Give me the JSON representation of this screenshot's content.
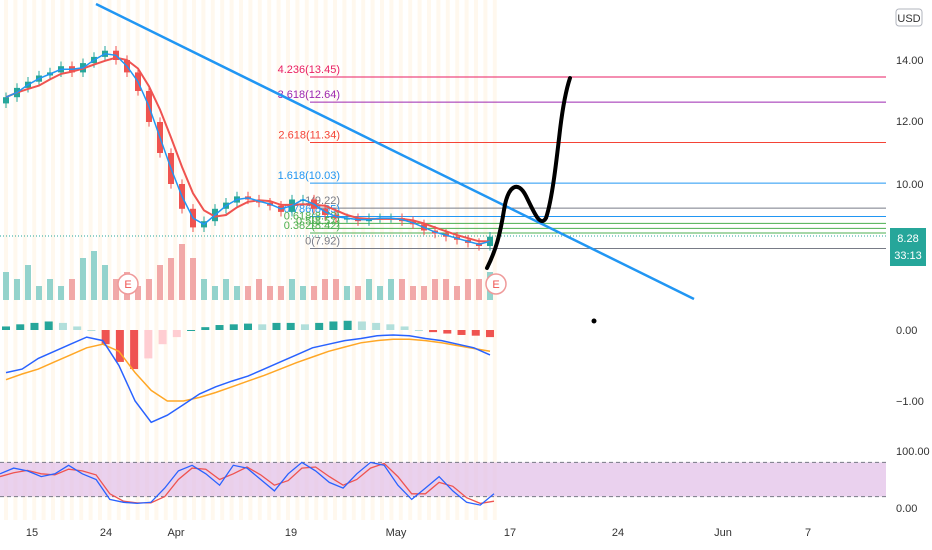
{
  "currency_label": "USD",
  "price_axis": {
    "ticks": [
      {
        "label": "14.00",
        "value": 14.0
      },
      {
        "label": "12.00",
        "value": 12.0
      },
      {
        "label": "10.00",
        "value": 10.0
      }
    ]
  },
  "macd_axis": {
    "ticks": [
      {
        "label": "0.00",
        "value": 0.0
      },
      {
        "label": "−1.00",
        "value": -1.0
      }
    ]
  },
  "stoch_axis": {
    "ticks": [
      {
        "label": "100.00",
        "value": 100
      },
      {
        "label": "0.00",
        "value": 0
      }
    ]
  },
  "date_axis": {
    "ticks": [
      "15",
      "24",
      "Apr",
      "19",
      "May",
      "17",
      "24",
      "Jun",
      "7"
    ]
  },
  "price_badge": {
    "price": "8.28",
    "countdown": "33:13"
  },
  "earnings_marker": "E",
  "colors": {
    "up": "#26a69a",
    "down": "#ef5350",
    "trendline": "#2196f3",
    "stoch_band": "#e1bee7",
    "price_badge": "#26a69a"
  },
  "chart_data": {
    "type": "candlestick",
    "price_unit": "USD",
    "fib_levels": [
      {
        "label": "4.236(13.45)",
        "ratio": 4.236,
        "price": 13.45,
        "color": "#e91e63"
      },
      {
        "label": "3.618(12.64)",
        "ratio": 3.618,
        "price": 12.64,
        "color": "#9c27b0"
      },
      {
        "label": "2.618(11.34)",
        "ratio": 2.618,
        "price": 11.34,
        "color": "#f44336"
      },
      {
        "label": "1.618(10.03)",
        "ratio": 1.618,
        "price": 10.03,
        "color": "#2196f3"
      },
      {
        "label": "1(9.22)",
        "ratio": 1,
        "price": 9.22,
        "color": "#787b86"
      },
      {
        "label": "0.786(8.95)",
        "ratio": 0.786,
        "price": 8.95,
        "color": "#2196f3"
      },
      {
        "label": "0.618(8.73)",
        "ratio": 0.618,
        "price": 8.73,
        "color": "#4caf50"
      },
      {
        "label": "0.5(8.57)",
        "ratio": 0.5,
        "price": 8.57,
        "color": "#4caf50"
      },
      {
        "label": "0.382(8.42)",
        "ratio": 0.382,
        "price": 8.42,
        "color": "#4caf50"
      },
      {
        "label": "0(7.92)",
        "ratio": 0,
        "price": 7.92,
        "color": "#787b86"
      }
    ],
    "close_series": [
      12.8,
      13.1,
      13.3,
      13.5,
      13.6,
      13.8,
      13.6,
      13.9,
      14.1,
      14.3,
      14.0,
      13.6,
      13.0,
      12.0,
      11.0,
      10.0,
      9.2,
      8.6,
      8.8,
      9.2,
      9.4,
      9.6,
      9.5,
      9.4,
      9.3,
      9.1,
      9.5,
      9.5,
      9.2,
      9.0,
      8.9,
      8.9,
      8.8,
      8.9,
      8.9,
      8.9,
      8.8,
      8.7,
      8.5,
      8.4,
      8.3,
      8.2,
      8.1,
      8.0,
      8.3
    ],
    "volume": [
      4,
      3,
      5,
      2,
      3,
      2,
      3,
      6,
      7,
      5,
      3,
      4,
      2,
      3,
      5,
      6,
      8,
      6,
      3,
      2,
      3,
      2,
      2,
      3,
      2,
      2,
      3,
      2,
      2,
      3,
      3,
      2,
      2,
      3,
      2,
      3,
      3,
      2,
      2,
      3,
      3,
      2,
      3,
      3,
      4
    ],
    "macd_histogram": [
      0.05,
      0.08,
      0.1,
      0.12,
      0.1,
      0.05,
      0.0,
      -0.2,
      -0.45,
      -0.55,
      -0.4,
      -0.2,
      -0.1,
      0.0,
      0.04,
      0.07,
      0.08,
      0.09,
      0.08,
      0.1,
      0.1,
      0.08,
      0.1,
      0.12,
      0.13,
      0.12,
      0.1,
      0.08,
      0.05,
      0.0,
      -0.03,
      -0.05,
      -0.07,
      -0.08,
      -0.1
    ],
    "macd_line": [
      -0.6,
      -0.55,
      -0.4,
      -0.3,
      -0.2,
      -0.1,
      -0.15,
      -0.5,
      -1.0,
      -1.3,
      -1.2,
      -1.05,
      -0.9,
      -0.8,
      -0.72,
      -0.65,
      -0.55,
      -0.45,
      -0.35,
      -0.25,
      -0.2,
      -0.15,
      -0.12,
      -0.08,
      -0.07,
      -0.08,
      -0.12,
      -0.15,
      -0.2,
      -0.25,
      -0.35
    ],
    "signal_line": [
      -0.7,
      -0.62,
      -0.55,
      -0.45,
      -0.35,
      -0.25,
      -0.2,
      -0.3,
      -0.6,
      -0.85,
      -1.0,
      -1.0,
      -0.95,
      -0.88,
      -0.8,
      -0.72,
      -0.64,
      -0.55,
      -0.46,
      -0.38,
      -0.3,
      -0.24,
      -0.18,
      -0.15,
      -0.13,
      -0.13,
      -0.15,
      -0.18,
      -0.22,
      -0.26,
      -0.3
    ],
    "stoch_k": [
      60,
      70,
      65,
      55,
      60,
      75,
      60,
      50,
      15,
      10,
      8,
      10,
      35,
      65,
      75,
      60,
      40,
      75,
      70,
      50,
      30,
      60,
      80,
      65,
      45,
      35,
      60,
      80,
      75,
      40,
      15,
      35,
      55,
      30,
      10,
      5,
      25
    ],
    "stoch_d": [
      55,
      62,
      66,
      60,
      58,
      68,
      65,
      58,
      25,
      12,
      9,
      9,
      20,
      50,
      70,
      68,
      50,
      60,
      72,
      58,
      40,
      48,
      70,
      72,
      55,
      40,
      50,
      70,
      78,
      55,
      25,
      25,
      45,
      38,
      18,
      8,
      12
    ],
    "stoch_band": [
      20,
      80
    ],
    "last_price": 8.28
  }
}
